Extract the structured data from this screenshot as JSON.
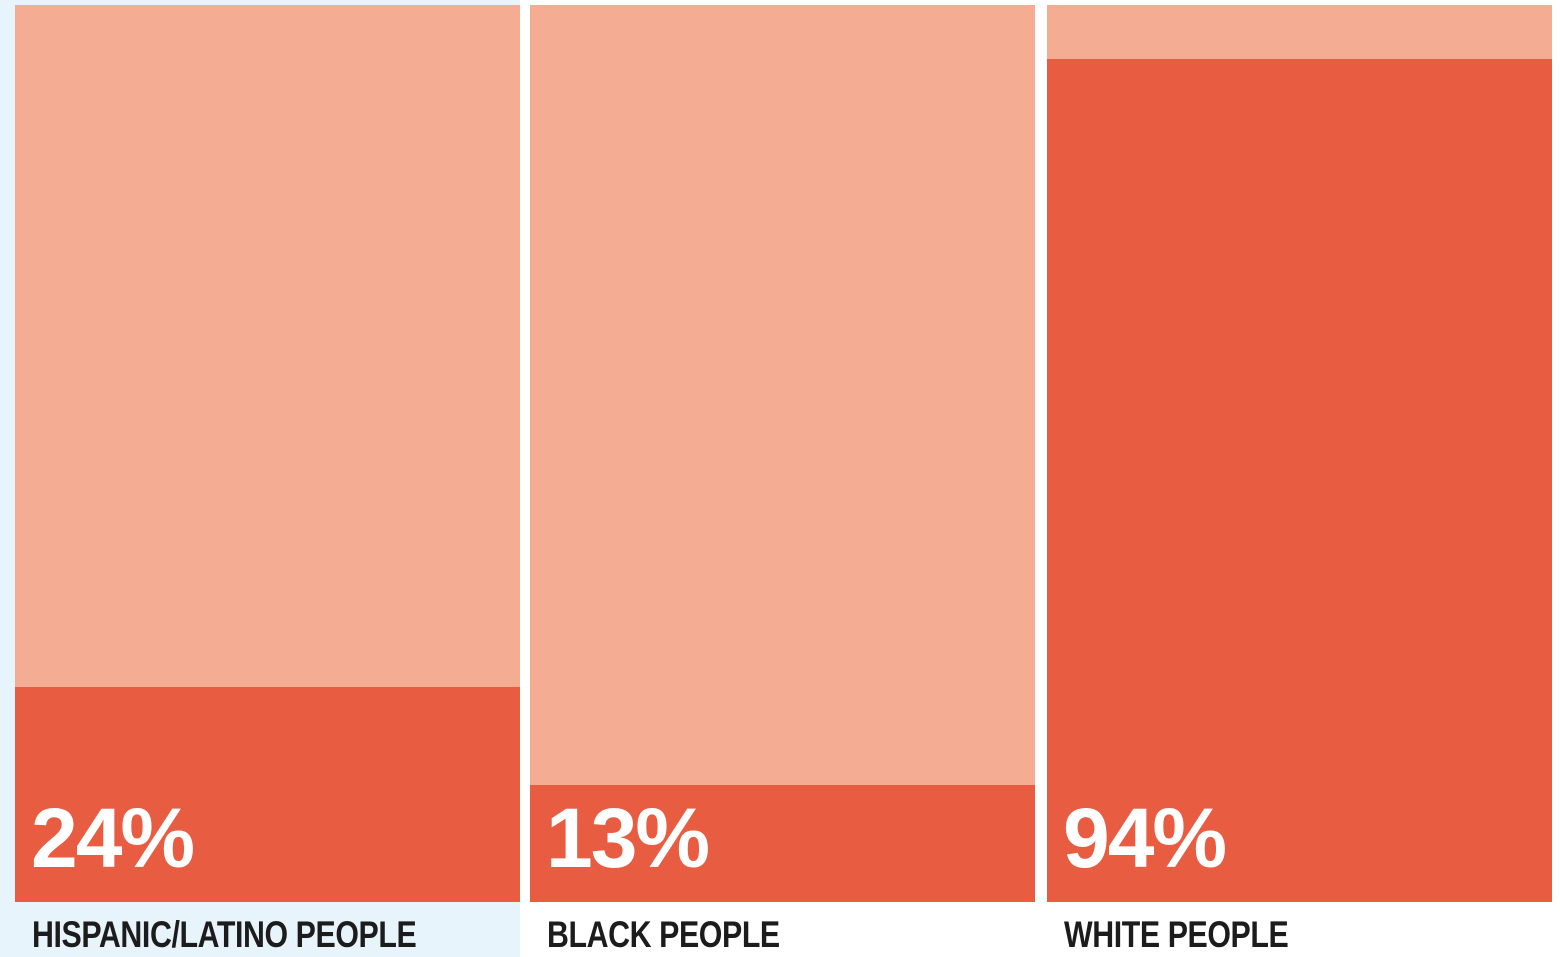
{
  "chart_data": {
    "type": "bar",
    "categories": [
      "HISPANIC/LATINO PEOPLE",
      "BLACK PEOPLE",
      "WHITE PEOPLE"
    ],
    "values": [
      24,
      13,
      94
    ],
    "value_labels": [
      "24%",
      "13%",
      "94%"
    ],
    "ylim": [
      0,
      100
    ],
    "unit": "%",
    "grid": false,
    "colors": {
      "fill": "#e85c41",
      "background_bar": "#f4ac92",
      "value_text": "#ffffff",
      "label_text": "#1c1c1c",
      "highlight_panel": "#e8f4fc"
    }
  }
}
